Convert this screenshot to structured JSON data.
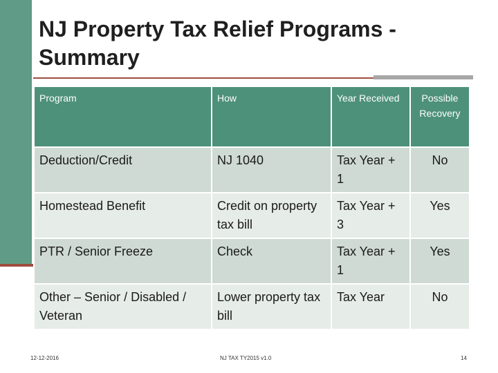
{
  "title": "NJ Property Tax Relief Programs - Summary",
  "table": {
    "headers": [
      "Program",
      "How",
      "Year Received",
      "Possible Recovery"
    ],
    "rows": [
      [
        "Deduction/Credit",
        "NJ 1040",
        "Tax Year + 1",
        "No"
      ],
      [
        "Homestead Benefit",
        "Credit on property tax bill",
        "Tax Year + 3",
        "Yes"
      ],
      [
        "PTR / Senior Freeze",
        "Check",
        "Tax Year + 1",
        "Yes"
      ],
      [
        "Other – Senior / Disabled / Veteran",
        "Lower property tax bill",
        "Tax Year",
        "No"
      ]
    ]
  },
  "footer": {
    "date": "12-12-2016",
    "center": "NJ TAX TY2015 v1.0",
    "page": "14"
  },
  "colors": {
    "accent": "#5f9b86",
    "header_fill": "#4e917a",
    "row_dark": "#cfdad4",
    "row_light": "#e6ece8",
    "rule": "#9c4d3e"
  }
}
